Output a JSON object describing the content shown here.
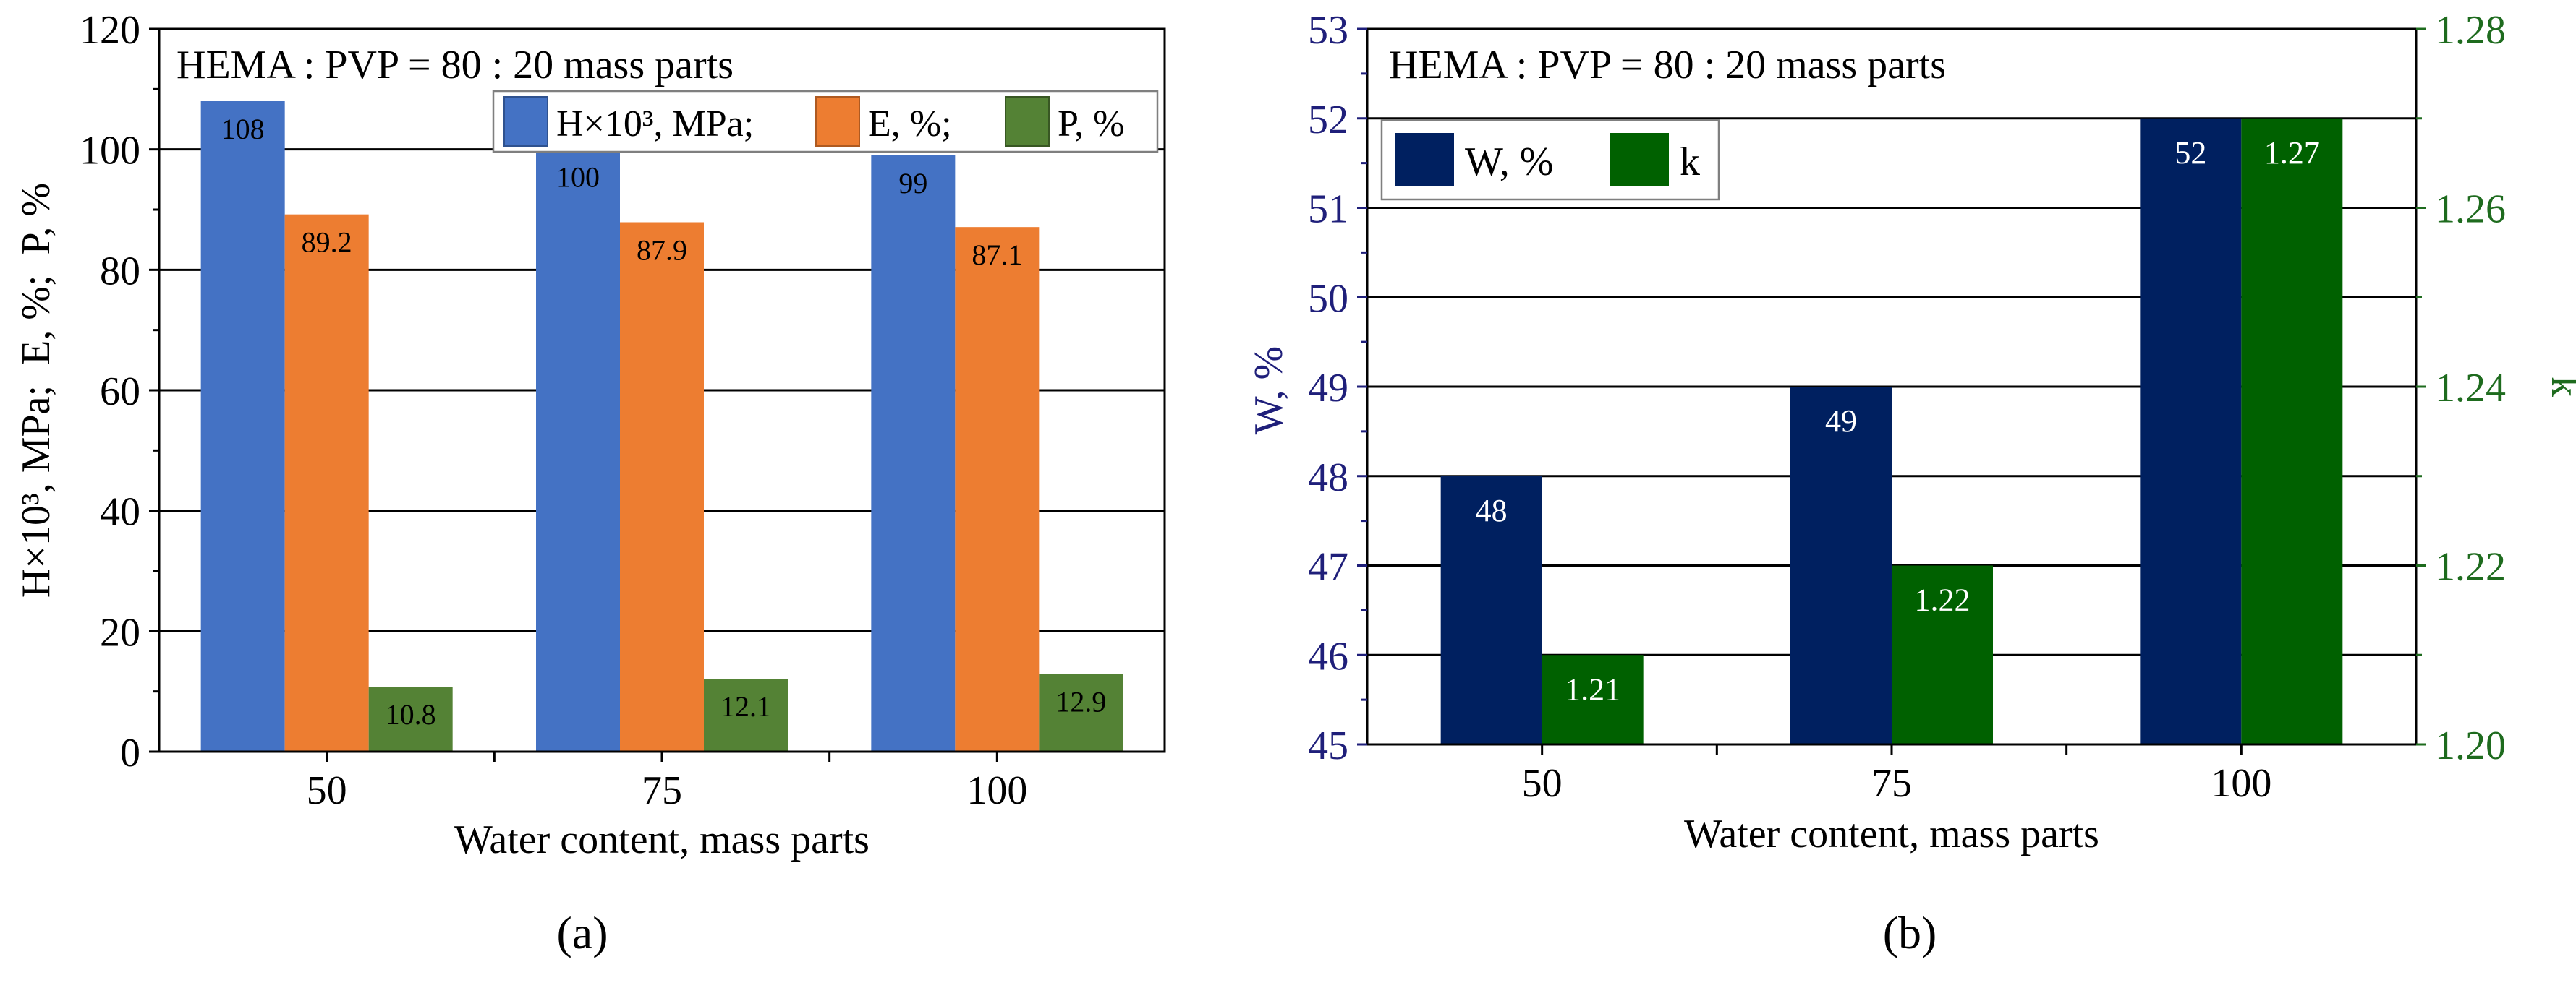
{
  "chart_data": [
    {
      "panel_label": "a",
      "type": "bar",
      "title": "HEMA : PVP = 80 : 20 mass parts",
      "xlabel": "Water content, mass parts",
      "ylabel": "H×10³, MPa;  E, %;  P, %",
      "categories": [
        "50",
        "75",
        "100"
      ],
      "ylim": [
        0,
        120
      ],
      "yticks": [
        "0",
        "20",
        "40",
        "60",
        "80",
        "100",
        "120"
      ],
      "grid": true,
      "legend_position": "top-right",
      "series": [
        {
          "name": "H×10³, MPa;",
          "color": "#4472C4",
          "values": [
            108,
            100,
            99
          ],
          "labels": [
            "108",
            "100",
            "99"
          ]
        },
        {
          "name": "E, %;",
          "color": "#ED7D31",
          "values": [
            89.2,
            87.9,
            87.1
          ],
          "labels": [
            "89.2",
            "87.9",
            "87.1"
          ]
        },
        {
          "name": "P, %",
          "color": "#548235",
          "values": [
            10.8,
            12.1,
            12.9
          ],
          "labels": [
            "10.8",
            "12.1",
            "12.9"
          ]
        }
      ]
    },
    {
      "panel_label": "b",
      "type": "bar",
      "title": "HEMA : PVP = 80 : 20 mass parts",
      "xlabel": "Water content, mass parts",
      "ylabel": "W, %",
      "ylabel_right": "k",
      "categories": [
        "50",
        "75",
        "100"
      ],
      "ylim": [
        45,
        53
      ],
      "yticks": [
        "45",
        "46",
        "47",
        "48",
        "49",
        "50",
        "51",
        "52",
        "53"
      ],
      "ylim_right": [
        1.2,
        1.28
      ],
      "yticks_right": [
        "1.20",
        "1.22",
        "1.24",
        "1.26",
        "1.28"
      ],
      "grid": true,
      "legend_position": "top-left",
      "series": [
        {
          "name": "W, %",
          "axis": "left",
          "color": "#002060",
          "values": [
            48,
            49,
            52
          ],
          "labels": [
            "48",
            "49",
            "52"
          ]
        },
        {
          "name": "k",
          "axis": "right",
          "color": "#006100",
          "values": [
            1.21,
            1.22,
            1.27
          ],
          "labels": [
            "1.21",
            "1.22",
            "1.27"
          ]
        }
      ],
      "left_axis_color": "#1F1F7A",
      "right_axis_color": "#1E6B1E"
    }
  ],
  "captions": {
    "a": "(a)",
    "b": "(b)"
  }
}
